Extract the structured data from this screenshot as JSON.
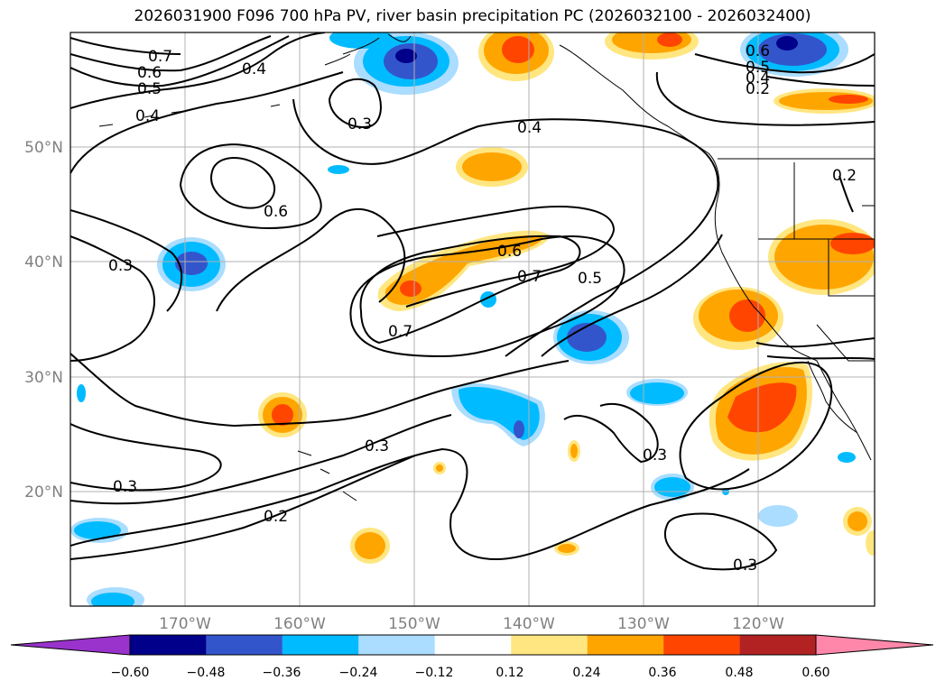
{
  "title": "2026031900 F096 700 hPa PV, river basin precipitation PC (2026032100 - 2026032400)",
  "map": {
    "lon_range": [
      -180,
      -110
    ],
    "lat_range": [
      10,
      60
    ],
    "lon_ticks": [
      "170°W",
      "160°W",
      "150°W",
      "140°W",
      "130°W",
      "120°W"
    ],
    "lat_ticks": [
      "50°N",
      "40°N",
      "30°N",
      "20°N"
    ],
    "gridlines": true,
    "contour_labels": [
      "0.7",
      "0.6",
      "0.5",
      "0.4",
      "0.4",
      "0.3",
      "0.4",
      "0.6",
      "0.3",
      "0.7",
      "0.6",
      "0.7",
      "0.5",
      "0.3",
      "0.3",
      "0.2",
      "0.3",
      "0.3",
      "0.6",
      "0.5",
      "0.4",
      "0.2",
      "0.2"
    ]
  },
  "colorbar": {
    "ticks": [
      "−0.60",
      "−0.48",
      "−0.36",
      "−0.24",
      "−0.12",
      "0.12",
      "0.24",
      "0.36",
      "0.48",
      "0.60"
    ],
    "colors": [
      "#9933cc",
      "#00008b",
      "#3355cc",
      "#00bbff",
      "#aaddff",
      "#ffffff",
      "#ffe680",
      "#ffa500",
      "#ff4500",
      "#b22222",
      "#ff88aa"
    ],
    "extend": "both"
  }
}
